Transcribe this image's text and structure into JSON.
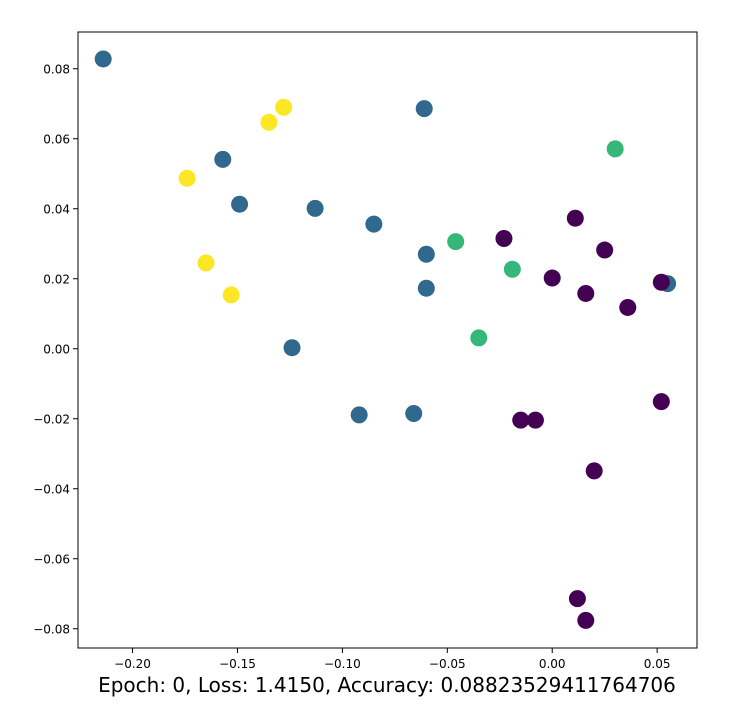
{
  "chart_data": {
    "type": "scatter",
    "title": "",
    "xlabel": "Epoch: 0, Loss: 1.4150, Accuracy: 0.08823529411764706",
    "ylabel": "",
    "xlim": [
      -0.226,
      0.069
    ],
    "ylim": [
      -0.0855,
      0.0905
    ],
    "grid": false,
    "x_ticks": [
      -0.2,
      -0.15,
      -0.1,
      -0.05,
      0.0,
      0.05
    ],
    "x_tick_labels": [
      "−0.20",
      "−0.15",
      "−0.10",
      "−0.05",
      "0.00",
      "0.05"
    ],
    "y_ticks": [
      -0.08,
      -0.06,
      -0.04,
      -0.02,
      0.0,
      0.02,
      0.04,
      0.06,
      0.08
    ],
    "y_tick_labels": [
      "−0.08",
      "−0.06",
      "−0.04",
      "−0.02",
      "0.00",
      "0.02",
      "0.04",
      "0.06",
      "0.08"
    ],
    "colors": {
      "class0": "#440154",
      "class1": "#31688e",
      "class2": "#35b779",
      "class3": "#fde725"
    },
    "points": [
      {
        "x": -0.214,
        "y": 0.0828,
        "c": "class1"
      },
      {
        "x": -0.157,
        "y": 0.0541,
        "c": "class1"
      },
      {
        "x": -0.149,
        "y": 0.0413,
        "c": "class1"
      },
      {
        "x": -0.113,
        "y": 0.0401,
        "c": "class1"
      },
      {
        "x": -0.085,
        "y": 0.0356,
        "c": "class1"
      },
      {
        "x": -0.061,
        "y": 0.0686,
        "c": "class1"
      },
      {
        "x": -0.06,
        "y": 0.027,
        "c": "class1"
      },
      {
        "x": -0.06,
        "y": 0.0173,
        "c": "class1"
      },
      {
        "x": -0.124,
        "y": 0.0003,
        "c": "class1"
      },
      {
        "x": -0.092,
        "y": -0.0189,
        "c": "class1"
      },
      {
        "x": -0.066,
        "y": -0.0185,
        "c": "class1"
      },
      {
        "x": 0.055,
        "y": 0.0186,
        "c": "class1"
      },
      {
        "x": -0.174,
        "y": 0.0487,
        "c": "class3"
      },
      {
        "x": -0.135,
        "y": 0.0647,
        "c": "class3"
      },
      {
        "x": -0.128,
        "y": 0.069,
        "c": "class3"
      },
      {
        "x": -0.165,
        "y": 0.0245,
        "c": "class3"
      },
      {
        "x": -0.153,
        "y": 0.0154,
        "c": "class3"
      },
      {
        "x": -0.046,
        "y": 0.0306,
        "c": "class2"
      },
      {
        "x": -0.019,
        "y": 0.0227,
        "c": "class2"
      },
      {
        "x": -0.035,
        "y": 0.0031,
        "c": "class2"
      },
      {
        "x": 0.03,
        "y": 0.0571,
        "c": "class2"
      },
      {
        "x": -0.023,
        "y": 0.0315,
        "c": "class0"
      },
      {
        "x": 0.0,
        "y": 0.0202,
        "c": "class0"
      },
      {
        "x": 0.011,
        "y": 0.0373,
        "c": "class0"
      },
      {
        "x": 0.025,
        "y": 0.0282,
        "c": "class0"
      },
      {
        "x": 0.016,
        "y": 0.0158,
        "c": "class0"
      },
      {
        "x": 0.036,
        "y": 0.0118,
        "c": "class0"
      },
      {
        "x": 0.052,
        "y": 0.019,
        "c": "class0"
      },
      {
        "x": -0.015,
        "y": -0.0204,
        "c": "class0"
      },
      {
        "x": -0.008,
        "y": -0.0204,
        "c": "class0"
      },
      {
        "x": 0.052,
        "y": -0.0151,
        "c": "class0"
      },
      {
        "x": 0.02,
        "y": -0.0349,
        "c": "class0"
      },
      {
        "x": 0.012,
        "y": -0.0714,
        "c": "class0"
      },
      {
        "x": 0.016,
        "y": -0.0776,
        "c": "class0"
      }
    ]
  }
}
